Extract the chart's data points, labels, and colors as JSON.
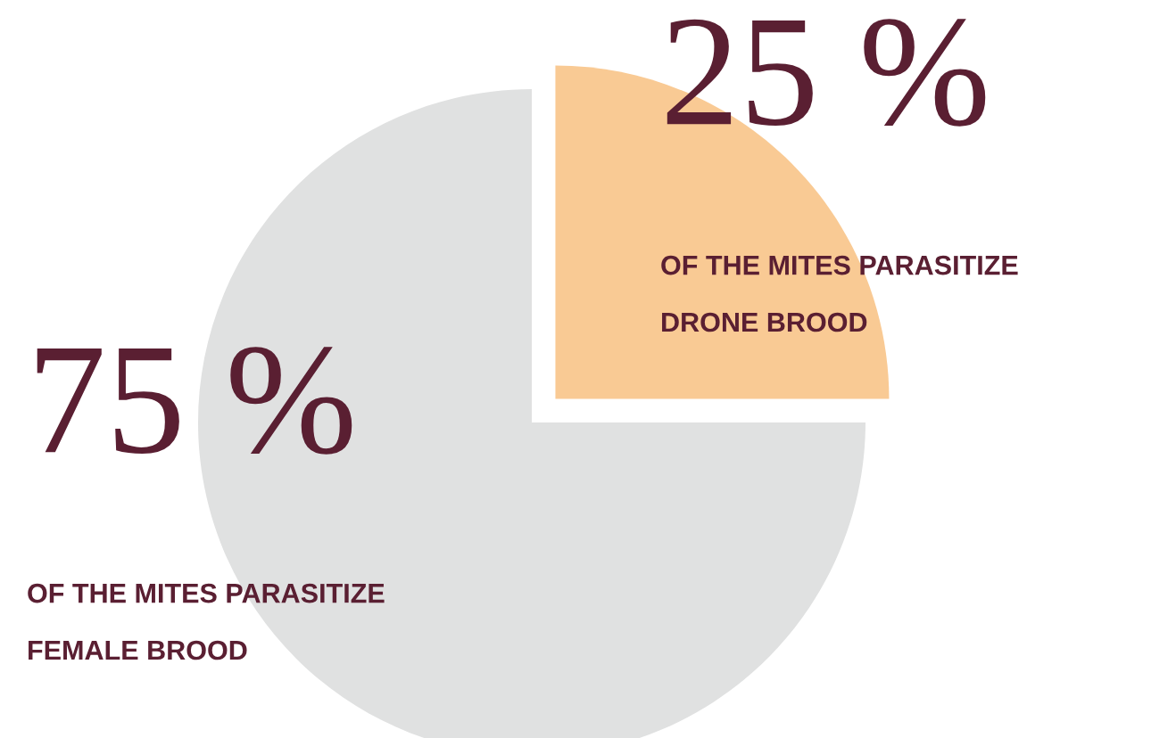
{
  "chart_data": {
    "type": "pie",
    "categories": [
      "OF THE MITES PARASITIZE\nDRONE BROOD",
      "OF THE MITES PARASITIZE\nFEMALE BROOD"
    ],
    "values": [
      25,
      75
    ],
    "colors": [
      "#f9ca94",
      "#e0e1e1"
    ],
    "value_labels": [
      "25 %",
      "75 %"
    ],
    "legend": false
  }
}
